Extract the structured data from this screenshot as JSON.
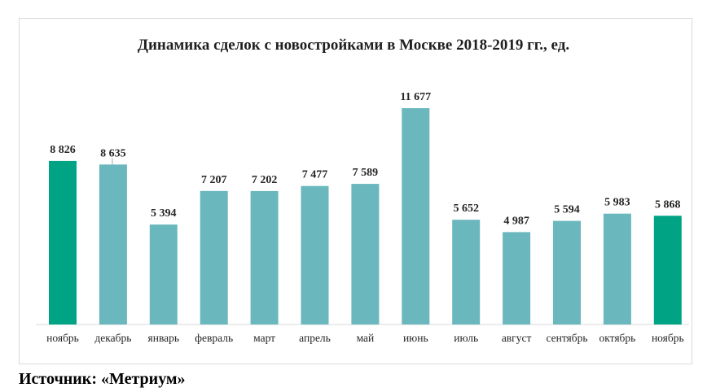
{
  "source": "Источник: «Метриум»",
  "chart_data": {
    "type": "bar",
    "title": "Динамика сделок с новостройками в Москве 2018-2019 гг., ед.",
    "xlabel": "",
    "ylabel": "",
    "categories": [
      "ноябрь",
      "декабрь",
      "январь",
      "февраль",
      "март",
      "апрель",
      "май",
      "июнь",
      "июль",
      "август",
      "сентябрь",
      "октябрь",
      "ноябрь"
    ],
    "values": [
      8826,
      8635,
      5394,
      7207,
      7202,
      7477,
      7589,
      11677,
      5652,
      4987,
      5594,
      5983,
      5868
    ],
    "value_labels": [
      "8 826",
      "8 635",
      "5 394",
      "7 207",
      "7 202",
      "7 477",
      "7 589",
      "11 677",
      "5 652",
      "4 987",
      "5 594",
      "5 983",
      "5 868"
    ],
    "highlight_indices": [
      0,
      12
    ],
    "ylim": [
      0,
      13000
    ],
    "grid": false,
    "legend": "none",
    "colors": {
      "bar": "#6ab7bd",
      "highlight": "#00a384",
      "axis": "#d9d9d9",
      "text": "#262626"
    }
  }
}
